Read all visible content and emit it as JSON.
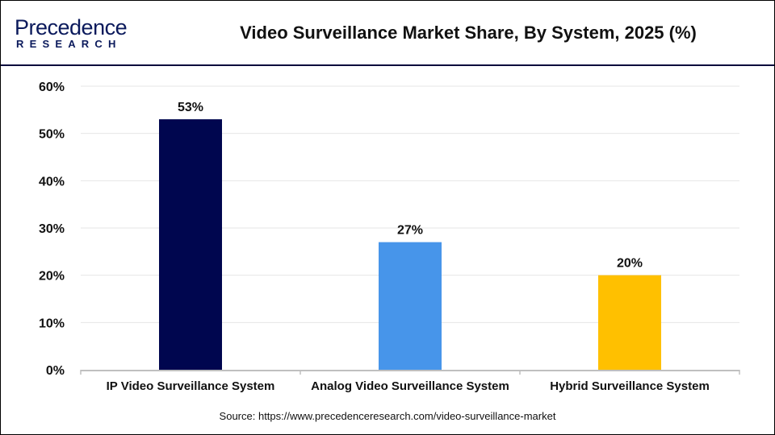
{
  "logo": {
    "line1": "Precedence",
    "line2": "RESEARCH"
  },
  "title": "Video Surveillance Market Share, By System, 2025 (%)",
  "source": "Source: https://www.precedenceresearch.com/video-surveillance-market",
  "chart_data": {
    "type": "bar",
    "title": "Video Surveillance Market Share, By System, 2025 (%)",
    "categories": [
      "IP Video Surveillance System",
      "Analog Video Surveillance System",
      "Hybrid Surveillance System"
    ],
    "values": [
      53,
      27,
      20
    ],
    "data_labels": [
      "53%",
      "27%",
      "20%"
    ],
    "colors": [
      "#00064f",
      "#4795ea",
      "#ffc000"
    ],
    "ylim": [
      0,
      60
    ],
    "yticks": [
      0,
      10,
      20,
      30,
      40,
      50,
      60
    ],
    "ytick_labels": [
      "0%",
      "10%",
      "20%",
      "30%",
      "40%",
      "50%",
      "60%"
    ],
    "grid": true,
    "xlabel": "",
    "ylabel": ""
  }
}
